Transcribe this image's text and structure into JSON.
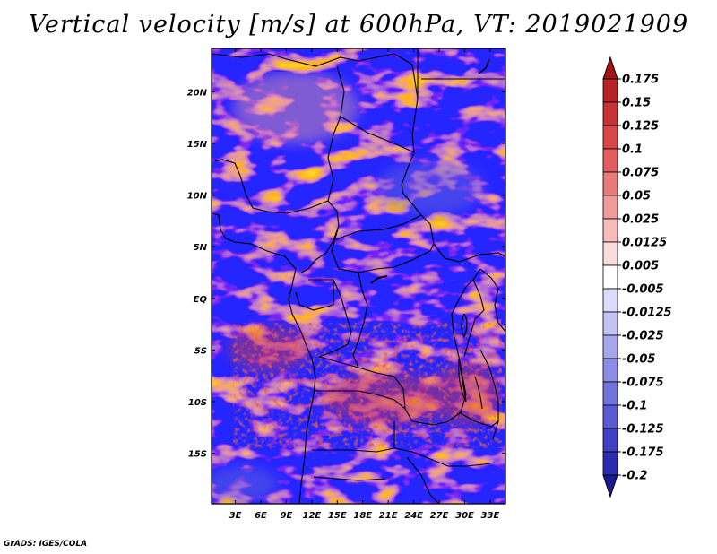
{
  "title": "Vertical velocity [m/s] at 600hPa, VT: 2019021909",
  "footer": "GrADS: IGES/COLA",
  "chart_data": {
    "type": "heatmap",
    "title": "Vertical velocity [m/s] at 600hPa, VT: 2019021909",
    "variable": "Vertical velocity",
    "units": "m/s",
    "level": "600hPa",
    "valid_time": "2019021909",
    "x_axis": {
      "ticks": [
        {
          "value": 3,
          "label": "3E"
        },
        {
          "value": 6,
          "label": "6E"
        },
        {
          "value": 9,
          "label": "9E"
        },
        {
          "value": 12,
          "label": "12E"
        },
        {
          "value": 15,
          "label": "15E"
        },
        {
          "value": 18,
          "label": "18E"
        },
        {
          "value": 21,
          "label": "21E"
        },
        {
          "value": 24,
          "label": "24E"
        },
        {
          "value": 27,
          "label": "27E"
        },
        {
          "value": 30,
          "label": "30E"
        },
        {
          "value": 33,
          "label": "33E"
        }
      ],
      "range": [
        0.2,
        34.8
      ]
    },
    "y_axis": {
      "ticks": [
        {
          "value": 20,
          "label": "20N"
        },
        {
          "value": 15,
          "label": "15N"
        },
        {
          "value": 10,
          "label": "10N"
        },
        {
          "value": 5,
          "label": "5N"
        },
        {
          "value": 0,
          "label": "EQ"
        },
        {
          "value": -5,
          "label": "5S"
        },
        {
          "value": -10,
          "label": "10S"
        },
        {
          "value": -15,
          "label": "15S"
        }
      ],
      "range": [
        -19.9,
        24.2
      ]
    },
    "colorbar": {
      "levels": [
        "0.175",
        "0.15",
        "0.125",
        "0.1",
        "0.075",
        "0.05",
        "0.025",
        "0.0125",
        "0.005",
        "-0.005",
        "-0.0125",
        "-0.025",
        "-0.05",
        "-0.075",
        "-0.1",
        "-0.125",
        "-0.175",
        "-0.2"
      ],
      "colors": [
        "#a01414",
        "#b82222",
        "#c83232",
        "#d84646",
        "#e25e5e",
        "#ea7a7a",
        "#f19a9a",
        "#f6baba",
        "#fbdcdc",
        "#ffffff",
        "#dcdcfa",
        "#c2c2f4",
        "#a6a6ec",
        "#8c8ce6",
        "#7272dc",
        "#5a5ad2",
        "#4040c4",
        "#2a2aae",
        "#1a1a92"
      ]
    }
  }
}
